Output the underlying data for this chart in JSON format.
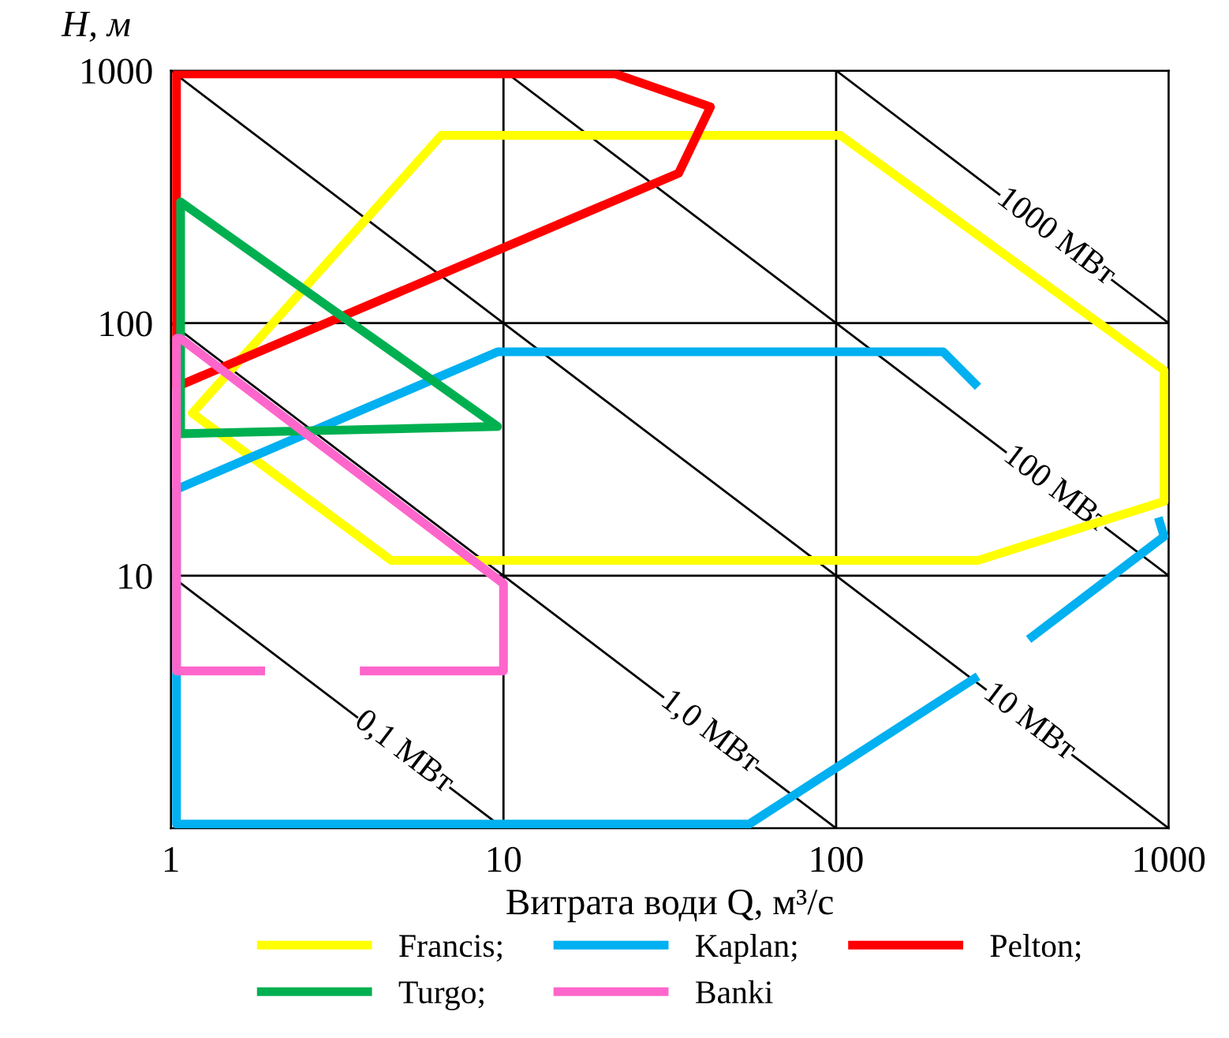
{
  "chart_data": {
    "type": "line",
    "xlabel": "Витрата води Q, м³/с",
    "ylabel": "H, м",
    "log": "xy",
    "xlim": [
      1,
      1000
    ],
    "ylim": [
      1,
      1000
    ],
    "xticks": [
      1,
      10,
      100,
      1000
    ],
    "yticks": [
      {
        "value": 1,
        "label": null
      },
      10,
      100,
      1000
    ],
    "grid": true,
    "legend": "bottom",
    "marker": "none",
    "line_style": "solid",
    "series": [
      {
        "name": "Francis;",
        "color": "#ffff00",
        "x": [
          40,
          103,
          968,
          968,
          267,
          4.6,
          1.16,
          6.5,
          42
        ],
        "values": [
          554,
          554,
          65,
          19.7,
          11.5,
          11.5,
          44,
          554,
          554
        ]
      },
      {
        "name": "Kaplan;",
        "color": "#00b0f0",
        "x": [
          267,
          210,
          9.6,
          1.04,
          1.04,
          54.8,
          267,
          null,
          379,
          968,
          930
        ],
        "values": [
          56,
          77,
          77,
          22,
          1.04,
          1.04,
          4.0,
          null,
          5.6,
          14.3,
          17
        ]
      },
      {
        "name": "Pelton;",
        "color": "#ff0000",
        "x": [
          5,
          21.7,
          41.9,
          33.6,
          1.04,
          1.04,
          5.5
        ],
        "values": [
          970,
          970,
          718,
          392,
          56,
          970,
          970
        ]
      },
      {
        "name": "Turgo;",
        "color": "#00b050",
        "x": [
          3.2,
          9.6,
          1.07,
          1.07,
          3.57
        ],
        "values": [
          108.6,
          39,
          36.5,
          302,
          98
        ]
      },
      {
        "name": "Banki",
        "color": "#ff66cc",
        "x": [
          3.7,
          10,
          10,
          1.07,
          1.04,
          1.04,
          1.92
        ],
        "values": [
          4.2,
          4.2,
          9.3,
          87,
          87,
          4.2,
          4.2
        ]
      },
      {
        "name": "0,1 МВт",
        "color": "#000000",
        "x": [
          1,
          10
        ],
        "values": [
          10,
          1
        ]
      },
      {
        "name": "1,0 МВт",
        "color": "#000000",
        "x": [
          1,
          100
        ],
        "values": [
          100,
          1
        ]
      },
      {
        "name": "10 МВт",
        "color": "#000000",
        "x": [
          1,
          1000
        ],
        "values": [
          1000,
          1
        ]
      },
      {
        "name": "100 МВт",
        "color": "#000000",
        "x": [
          10,
          1000
        ],
        "values": [
          1000,
          10
        ]
      },
      {
        "name": "1000 МВт",
        "color": "#000000",
        "x": [
          100,
          1000
        ],
        "values": [
          1000,
          100
        ]
      }
    ]
  }
}
